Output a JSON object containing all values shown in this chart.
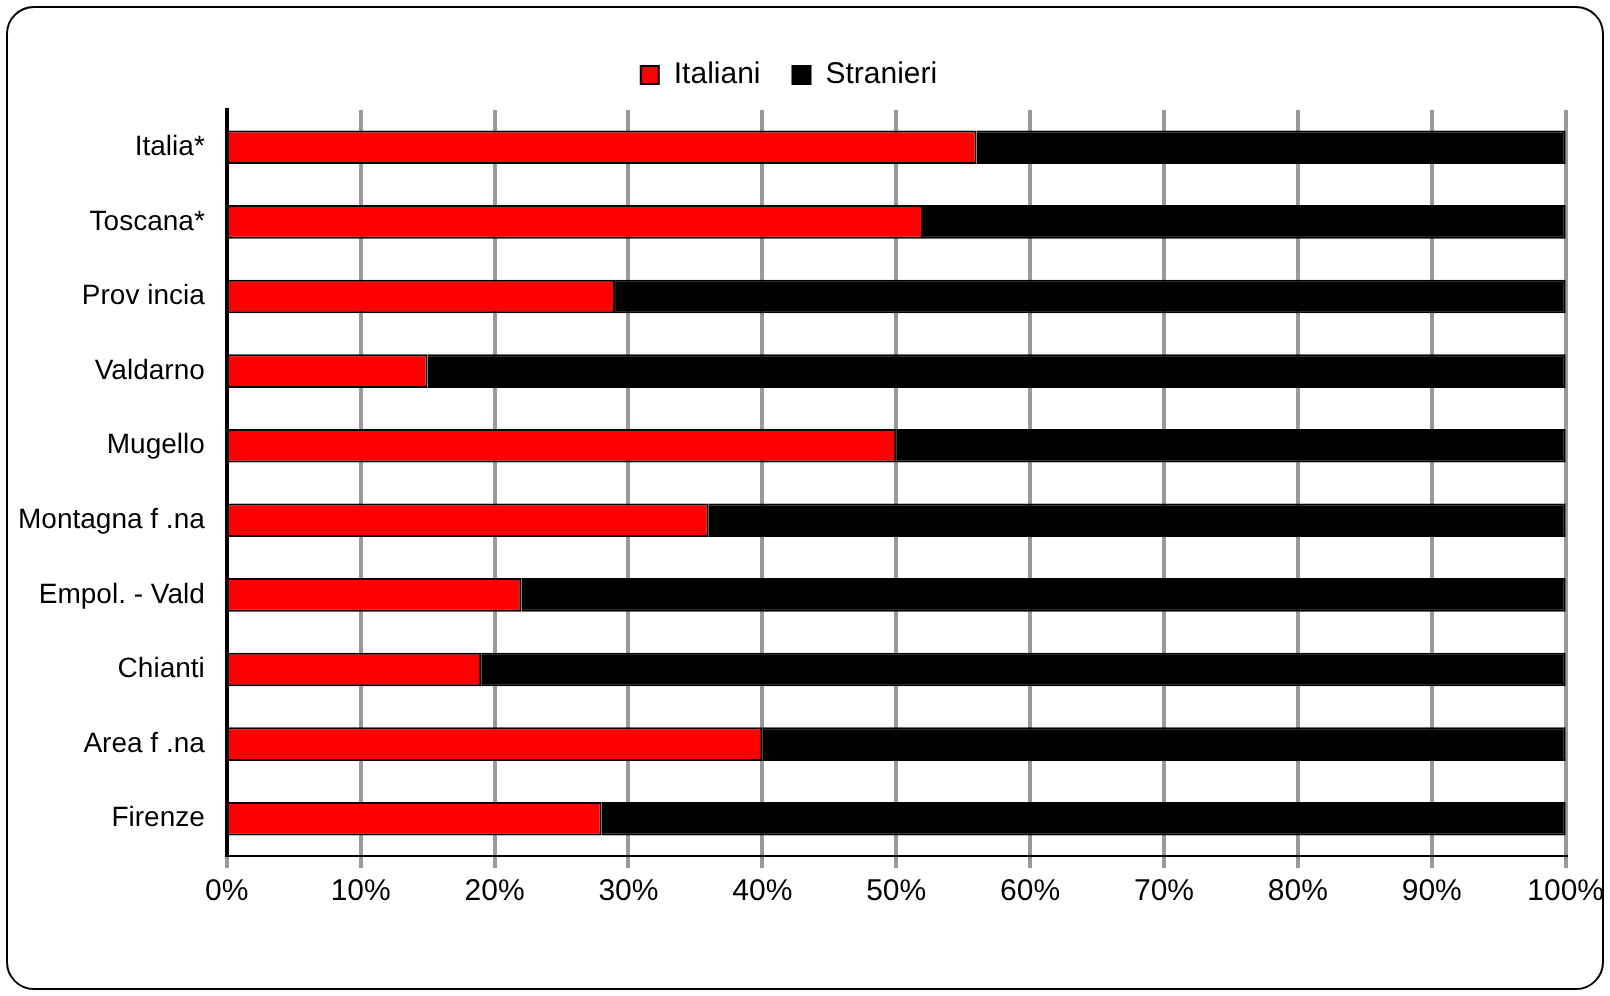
{
  "chart_data": {
    "type": "bar",
    "orientation": "horizontal",
    "stacked": true,
    "categories": [
      "Italia*",
      "Toscana*",
      "Prov incia",
      "Valdarno",
      "Mugello",
      "Montagna f .na",
      "Empol. - Vald",
      "Chianti",
      "Area f .na",
      "Firenze"
    ],
    "series": [
      {
        "name": "Italiani",
        "color": "#ff0000",
        "values": [
          56,
          52,
          29,
          15,
          50,
          36,
          22,
          19,
          40,
          28
        ]
      },
      {
        "name": "Stranieri",
        "color": "#000000",
        "values": [
          44,
          48,
          71,
          85,
          50,
          64,
          78,
          81,
          60,
          72
        ]
      }
    ],
    "xlim": [
      0,
      100
    ],
    "xticks": [
      {
        "value": 0,
        "label": "0%"
      },
      {
        "value": 10,
        "label": "10%"
      },
      {
        "value": 20,
        "label": "20%"
      },
      {
        "value": 30,
        "label": "30%"
      },
      {
        "value": 40,
        "label": "40%"
      },
      {
        "value": 50,
        "label": "50%"
      },
      {
        "value": 60,
        "label": "60%"
      },
      {
        "value": 70,
        "label": "70%"
      },
      {
        "value": 80,
        "label": "80%"
      },
      {
        "value": 90,
        "label": "90%"
      },
      {
        "value": 100,
        "label": "100%"
      }
    ],
    "grid": "x",
    "legend": "top"
  }
}
